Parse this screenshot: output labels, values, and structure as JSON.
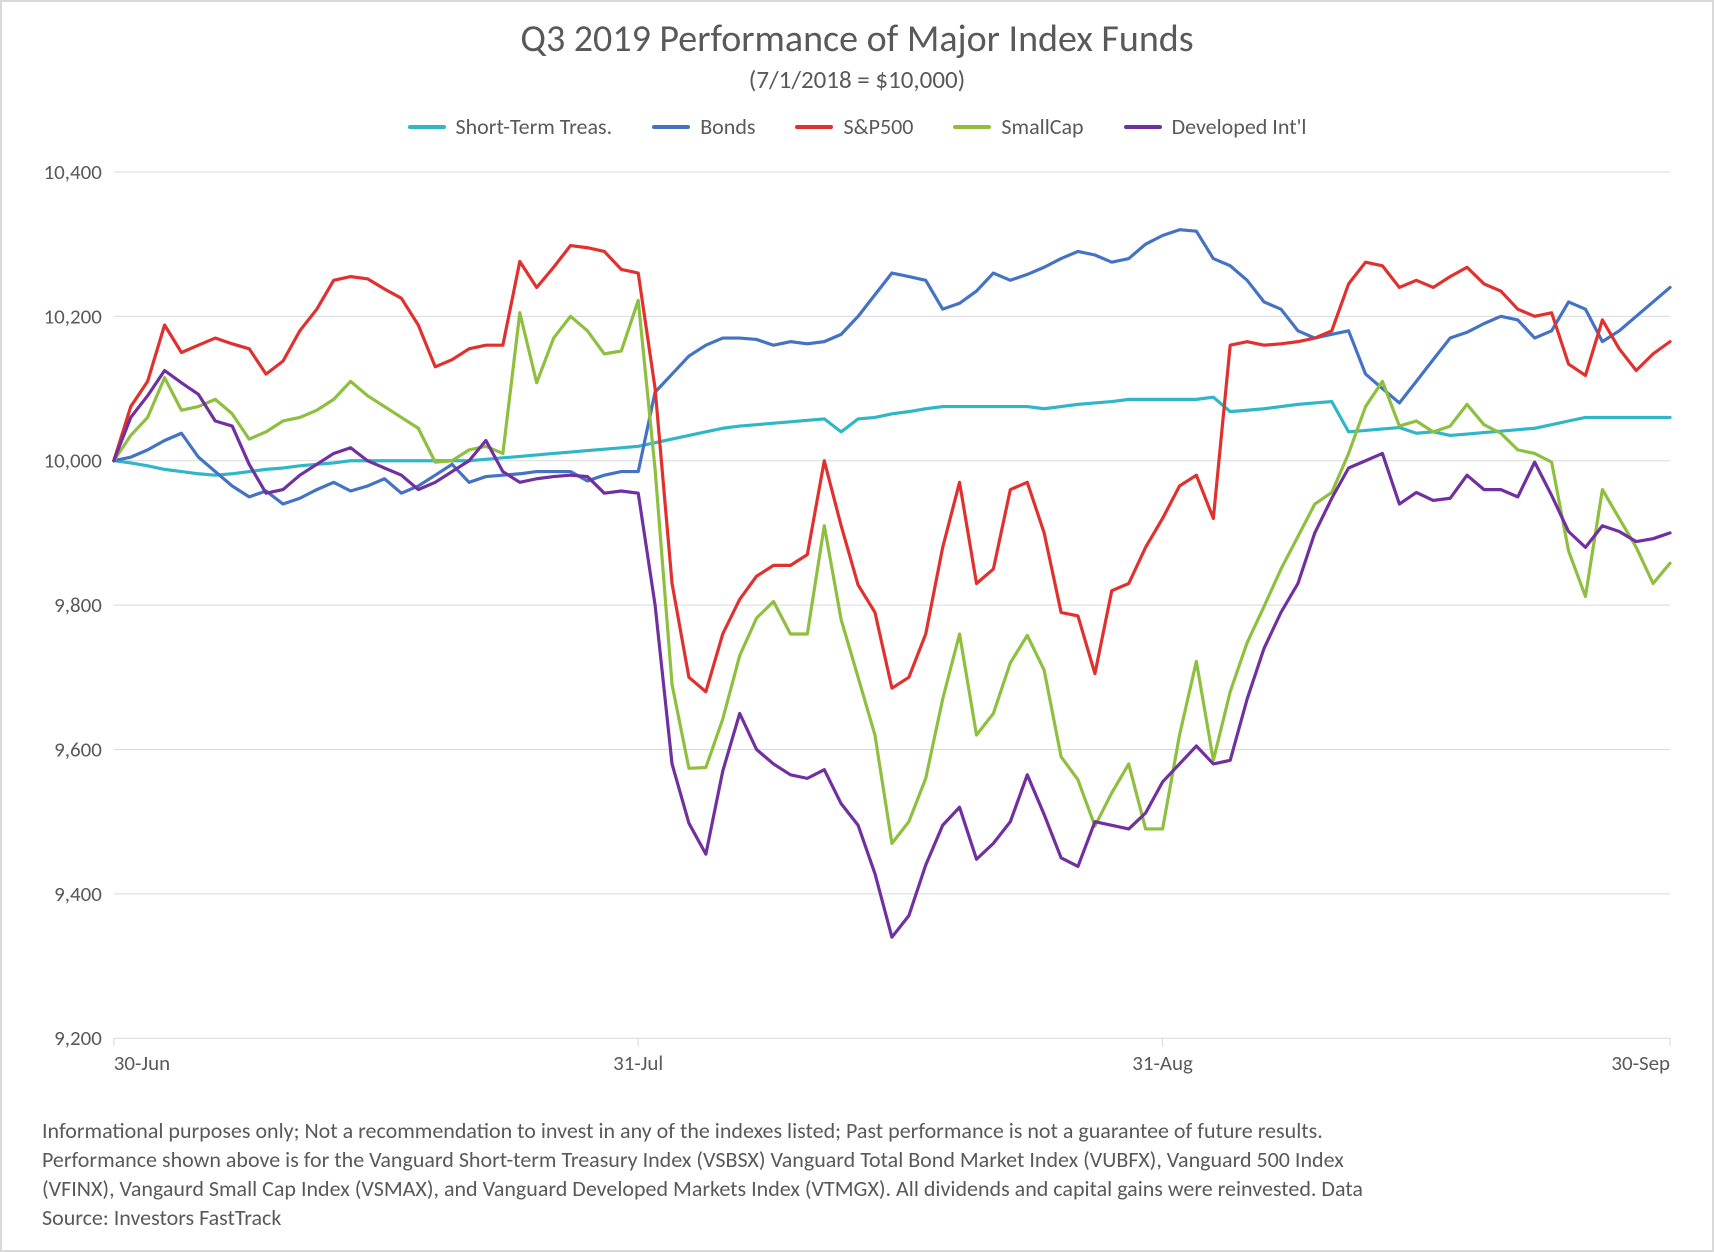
{
  "chart": {
    "type": "line",
    "title": "Q3 2019 Performance of Major Index Funds",
    "subtitle": "(7/1/2018 = $10,000)",
    "title_fontsize": 38,
    "subtitle_fontsize": 25,
    "title_color": "#595959",
    "background_color": "#ffffff",
    "border_color": "#d9d9d9",
    "grid_color": "#d9d9d9",
    "axis_text_color": "#595959",
    "tick_fontsize": 21,
    "line_width": 3.2,
    "y_axis": {
      "min": 9200,
      "max": 10400,
      "tick_step": 200,
      "ticks": [
        9200,
        9400,
        9600,
        9800,
        10000,
        10200,
        10400
      ],
      "format": "comma"
    },
    "x_axis": {
      "labels": [
        "30-Jun",
        "31-Jul",
        "31-Aug",
        "30-Sep"
      ],
      "positions": [
        0,
        31,
        62,
        92
      ],
      "domain_max": 92
    },
    "legend": {
      "position": "top-center",
      "fontsize": 22,
      "items": [
        {
          "key": "stt",
          "label": "Short-Term Treas.",
          "color": "#31B6C8"
        },
        {
          "key": "bonds",
          "label": "Bonds",
          "color": "#4472C4"
        },
        {
          "key": "sp500",
          "label": "S&P500",
          "color": "#E0312E"
        },
        {
          "key": "smallcap",
          "label": "SmallCap",
          "color": "#8EBF3F"
        },
        {
          "key": "devintl",
          "label": "Developed Int'l",
          "color": "#7030A0"
        }
      ]
    },
    "series": {
      "stt": {
        "color": "#31B6C8",
        "values": [
          10000,
          9997,
          9993,
          9988,
          9985,
          9982,
          9980,
          9982,
          9985,
          9988,
          9990,
          9993,
          9995,
          9997,
          10000,
          10000,
          10000,
          10000,
          10000,
          10000,
          10000,
          10000,
          10002,
          10004,
          10006,
          10008,
          10010,
          10012,
          10014,
          10016,
          10018,
          10020,
          10025,
          10030,
          10035,
          10040,
          10045,
          10048,
          10050,
          10052,
          10054,
          10056,
          10058,
          10040,
          10058,
          10060,
          10065,
          10068,
          10072,
          10075,
          10075,
          10075,
          10075,
          10075,
          10075,
          10072,
          10075,
          10078,
          10080,
          10082,
          10085,
          10085,
          10085,
          10085,
          10085,
          10088,
          10068,
          10070,
          10072,
          10075,
          10078,
          10080,
          10082,
          10040,
          10042,
          10044,
          10046,
          10038,
          10040,
          10035,
          10037,
          10039,
          10041,
          10043,
          10045,
          10050,
          10055,
          10060,
          10060,
          10060,
          10060,
          10060,
          10060
        ]
      },
      "bonds": {
        "color": "#4472C4",
        "values": [
          10000,
          10005,
          10015,
          10028,
          10038,
          10005,
          9985,
          9965,
          9950,
          9958,
          9940,
          9948,
          9960,
          9970,
          9958,
          9965,
          9975,
          9955,
          9965,
          9980,
          9995,
          9970,
          9978,
          9980,
          9982,
          9985,
          9985,
          9985,
          9972,
          9980,
          9985,
          9985,
          10095,
          10120,
          10145,
          10160,
          10170,
          10170,
          10168,
          10160,
          10165,
          10162,
          10165,
          10175,
          10200,
          10230,
          10260,
          10255,
          10250,
          10210,
          10218,
          10235,
          10260,
          10250,
          10258,
          10268,
          10280,
          10290,
          10285,
          10275,
          10280,
          10300,
          10312,
          10320,
          10318,
          10280,
          10270,
          10250,
          10220,
          10210,
          10180,
          10170,
          10175,
          10180,
          10120,
          10100,
          10080,
          10110,
          10140,
          10170,
          10178,
          10190,
          10200,
          10195,
          10170,
          10180,
          10220,
          10210,
          10165,
          10180,
          10200,
          10220,
          10240
        ]
      },
      "sp500": {
        "color": "#E0312E",
        "values": [
          10000,
          10075,
          10110,
          10188,
          10150,
          10160,
          10170,
          10162,
          10155,
          10120,
          10138,
          10180,
          10210,
          10250,
          10255,
          10252,
          10238,
          10225,
          10188,
          10130,
          10140,
          10155,
          10160,
          10160,
          10276,
          10240,
          10268,
          10298,
          10295,
          10290,
          10265,
          10260,
          10100,
          9830,
          9700,
          9680,
          9760,
          9808,
          9840,
          9855,
          9855,
          9870,
          10000,
          9910,
          9828,
          9790,
          9685,
          9700,
          9760,
          9880,
          9970,
          9830,
          9850,
          9960,
          9970,
          9900,
          9790,
          9785,
          9705,
          9820,
          9830,
          9880,
          9920,
          9965,
          9980,
          9920,
          10160,
          10165,
          10160,
          10162,
          10165,
          10170,
          10180,
          10245,
          10275,
          10270,
          10240,
          10250,
          10240,
          10255,
          10268,
          10245,
          10235,
          10210,
          10200,
          10205,
          10134,
          10118,
          10195,
          10155,
          10125,
          10148,
          10165
        ]
      },
      "smallcap": {
        "color": "#8EBF3F",
        "values": [
          10000,
          10035,
          10060,
          10115,
          10070,
          10075,
          10085,
          10065,
          10030,
          10040,
          10055,
          10060,
          10070,
          10085,
          10110,
          10090,
          10075,
          10060,
          10045,
          9998,
          10000,
          10015,
          10020,
          10010,
          10205,
          10108,
          10170,
          10200,
          10180,
          10148,
          10152,
          10222,
          9988,
          9690,
          9574,
          9575,
          9642,
          9730,
          9782,
          9805,
          9760,
          9760,
          9910,
          9780,
          9700,
          9620,
          9470,
          9500,
          9560,
          9670,
          9760,
          9620,
          9650,
          9720,
          9758,
          9710,
          9590,
          9558,
          9494,
          9540,
          9580,
          9490,
          9490,
          9620,
          9722,
          9585,
          9680,
          9748,
          9798,
          9850,
          9895,
          9940,
          9956,
          10010,
          10075,
          10110,
          10048,
          10055,
          10040,
          10048,
          10078,
          10050,
          10038,
          10015,
          10010,
          9998,
          9875,
          9812,
          9960,
          9920,
          9880,
          9830,
          9858
        ]
      },
      "devintl": {
        "color": "#7030A0",
        "values": [
          10000,
          10060,
          10090,
          10125,
          10108,
          10092,
          10055,
          10048,
          9995,
          9955,
          9960,
          9980,
          9995,
          10010,
          10018,
          10000,
          9990,
          9980,
          9960,
          9970,
          9985,
          10000,
          10028,
          9985,
          9970,
          9975,
          9978,
          9980,
          9978,
          9955,
          9958,
          9955,
          9800,
          9580,
          9498,
          9455,
          9570,
          9650,
          9600,
          9580,
          9565,
          9560,
          9572,
          9525,
          9495,
          9428,
          9340,
          9370,
          9440,
          9495,
          9520,
          9448,
          9470,
          9500,
          9565,
          9510,
          9450,
          9438,
          9500,
          9495,
          9490,
          9512,
          9555,
          9580,
          9605,
          9580,
          9585,
          9670,
          9740,
          9790,
          9830,
          9900,
          9948,
          9990,
          10000,
          10010,
          9940,
          9956,
          9945,
          9948,
          9980,
          9960,
          9960,
          9950,
          9998,
          9952,
          9902,
          9880,
          9910,
          9902,
          9888,
          9892,
          9900
        ]
      }
    },
    "footer_lines": [
      "Informational purposes only; Not a recommendation to invest in any of the indexes listed; Past performance is not a guarantee of future results.",
      "Performance shown above is for the Vanguard Short-term Treasury Index (VSBSX) Vanguard Total Bond Market Index (VUBFX), Vanguard 500 Index",
      "(VFINX), Vangaurd Small Cap Index (VSMAX), and Vanguard Developed Markets Index (VTMGX). All dividends and capital gains were reinvested. Data",
      "Source: Investors FastTrack"
    ]
  }
}
